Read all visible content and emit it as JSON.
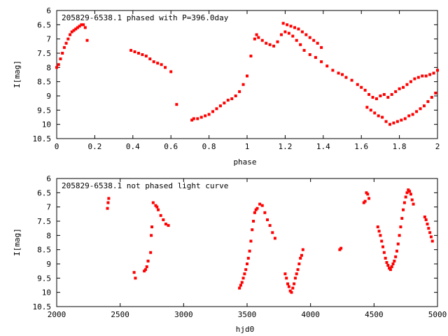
{
  "chart_data": [
    {
      "type": "scatter",
      "title": "205829-6538.1 phased with P=396.0day",
      "xlabel": "phase",
      "ylabel": "I[mag]",
      "xlim": [
        0,
        2
      ],
      "ylim": [
        10.5,
        6
      ],
      "y_inverted": true,
      "grid": false,
      "xticks": [
        "0",
        "0.2",
        "0.4",
        "0.6",
        "0.8",
        "1",
        "1.2",
        "1.4",
        "1.6",
        "1.8",
        "2"
      ],
      "yticks": [
        "6",
        "6.5",
        "7",
        "7.5",
        "8",
        "8.5",
        "9",
        "9.5",
        "10",
        "10.5"
      ],
      "marker_color": "#ff0000",
      "series": [
        {
          "x": [
            0.0,
            0.01,
            0.02,
            0.03,
            0.04,
            0.05,
            0.06,
            0.07,
            0.08,
            0.09,
            0.1,
            0.11,
            0.12,
            0.13,
            0.14,
            0.15,
            0.16,
            0.39,
            0.41,
            0.43,
            0.45,
            0.47,
            0.49,
            0.51,
            0.53,
            0.55,
            0.57,
            0.6,
            0.63,
            0.71,
            0.72,
            0.74,
            0.76,
            0.78,
            0.8,
            0.82,
            0.84,
            0.86,
            0.88,
            0.9,
            0.92,
            0.94,
            0.96,
            0.98,
            1.0,
            1.02,
            1.04,
            1.05,
            1.06,
            1.08,
            1.1,
            1.12,
            1.14,
            1.16,
            1.18,
            1.2,
            1.22,
            1.24,
            1.26,
            1.28,
            1.3,
            1.33,
            1.36,
            1.39,
            1.42,
            1.45,
            1.48,
            1.5,
            1.52,
            1.55,
            1.58,
            1.6,
            1.62,
            1.64,
            1.66,
            1.68,
            1.7,
            1.72,
            1.74,
            1.76,
            1.78,
            1.8,
            1.82,
            1.84,
            1.86,
            1.88,
            1.9,
            1.92,
            1.94,
            1.96,
            1.98,
            2.0,
            1.63,
            1.65,
            1.67,
            1.69,
            1.71,
            1.73,
            1.75,
            1.77,
            1.79,
            1.81,
            1.83,
            1.85,
            1.87,
            1.89,
            1.91,
            1.93,
            1.95,
            1.97,
            1.99,
            1.19,
            1.21,
            1.23,
            1.25,
            1.27,
            1.29,
            1.31,
            1.33,
            1.35,
            1.37,
            1.39
          ],
          "y": [
            8.0,
            7.9,
            7.7,
            7.5,
            7.3,
            7.15,
            7.0,
            6.85,
            6.75,
            6.7,
            6.65,
            6.6,
            6.55,
            6.5,
            6.5,
            6.6,
            7.05,
            7.4,
            7.45,
            7.5,
            7.55,
            7.6,
            7.7,
            7.8,
            7.85,
            7.9,
            8.0,
            8.15,
            9.3,
            9.85,
            9.8,
            9.8,
            9.75,
            9.7,
            9.65,
            9.55,
            9.45,
            9.35,
            9.25,
            9.15,
            9.1,
            9.0,
            8.85,
            8.6,
            8.3,
            7.6,
            7.0,
            6.85,
            6.95,
            7.05,
            7.15,
            7.2,
            7.25,
            7.1,
            6.85,
            6.75,
            6.8,
            6.9,
            7.05,
            7.2,
            7.4,
            7.55,
            7.65,
            7.8,
            7.95,
            8.1,
            8.2,
            8.25,
            8.35,
            8.45,
            8.6,
            8.7,
            8.8,
            8.95,
            9.05,
            9.1,
            9.0,
            8.95,
            9.05,
            8.95,
            8.85,
            8.75,
            8.7,
            8.6,
            8.5,
            8.4,
            8.35,
            8.3,
            8.3,
            8.25,
            8.2,
            8.1,
            9.4,
            9.5,
            9.6,
            9.7,
            9.75,
            9.9,
            10.0,
            9.95,
            9.9,
            9.85,
            9.8,
            9.7,
            9.65,
            9.55,
            9.45,
            9.35,
            9.2,
            9.05,
            8.9,
            6.45,
            6.5,
            6.55,
            6.6,
            6.65,
            6.75,
            6.85,
            6.95,
            7.05,
            7.15,
            7.3
          ]
        }
      ]
    },
    {
      "type": "scatter",
      "title": "205829-6538.1 not phased light curve",
      "xlabel": "hjd0",
      "ylabel": "I[mag]",
      "xlim": [
        2000,
        5000
      ],
      "ylim": [
        10.5,
        6
      ],
      "y_inverted": true,
      "grid": false,
      "xticks": [
        "2000",
        "2500",
        "3000",
        "3500",
        "4000",
        "4500",
        "5000"
      ],
      "yticks": [
        "6",
        "6.5",
        "7",
        "7.5",
        "8",
        "8.5",
        "9",
        "9.5",
        "10",
        "10.5"
      ],
      "marker_color": "#ff0000",
      "series": [
        {
          "x": [
            2400,
            2405,
            2410,
            2610,
            2620,
            2690,
            2700,
            2710,
            2720,
            2740,
            2745,
            2750,
            2760,
            2780,
            2790,
            2800,
            2820,
            2840,
            2860,
            2880,
            3440,
            3450,
            3460,
            3470,
            3480,
            3490,
            3500,
            3510,
            3520,
            3530,
            3540,
            3550,
            3560,
            3570,
            3580,
            3600,
            3620,
            3640,
            3660,
            3680,
            3700,
            3720,
            3800,
            3810,
            3820,
            3830,
            3840,
            3850,
            3860,
            3870,
            3880,
            3890,
            3900,
            3910,
            3920,
            3930,
            3940,
            4230,
            4240,
            4420,
            4430,
            4440,
            4450,
            4460,
            4530,
            4540,
            4550,
            4560,
            4570,
            4580,
            4590,
            4600,
            4610,
            4620,
            4630,
            4640,
            4650,
            4660,
            4670,
            4680,
            4690,
            4700,
            4710,
            4720,
            4730,
            4740,
            4750,
            4760,
            4770,
            4780,
            4790,
            4800,
            4810,
            4900,
            4910,
            4920,
            4930,
            4940,
            4950,
            4960
          ],
          "y": [
            7.05,
            6.85,
            6.7,
            9.3,
            9.5,
            9.25,
            9.2,
            9.1,
            8.9,
            8.6,
            8.0,
            7.7,
            6.85,
            6.95,
            7.0,
            7.1,
            7.3,
            7.45,
            7.6,
            7.65,
            9.85,
            9.75,
            9.65,
            9.5,
            9.35,
            9.2,
            9.0,
            8.8,
            8.55,
            8.2,
            7.8,
            7.5,
            7.2,
            7.1,
            7.05,
            6.9,
            6.95,
            7.2,
            7.45,
            7.65,
            7.9,
            8.1,
            9.35,
            9.5,
            9.7,
            9.8,
            9.95,
            10.0,
            9.85,
            9.7,
            9.5,
            9.35,
            9.2,
            9.0,
            8.8,
            8.7,
            8.5,
            8.5,
            8.45,
            6.85,
            6.8,
            6.5,
            6.55,
            6.7,
            7.7,
            7.85,
            8.0,
            8.2,
            8.4,
            8.6,
            8.8,
            8.95,
            9.05,
            9.15,
            9.2,
            9.1,
            9.0,
            8.9,
            8.75,
            8.55,
            8.3,
            8.0,
            7.7,
            7.4,
            7.1,
            6.85,
            6.65,
            6.5,
            6.4,
            6.45,
            6.55,
            6.75,
            6.9,
            7.35,
            7.45,
            7.6,
            7.75,
            7.9,
            8.05,
            8.2
          ]
        }
      ]
    }
  ]
}
